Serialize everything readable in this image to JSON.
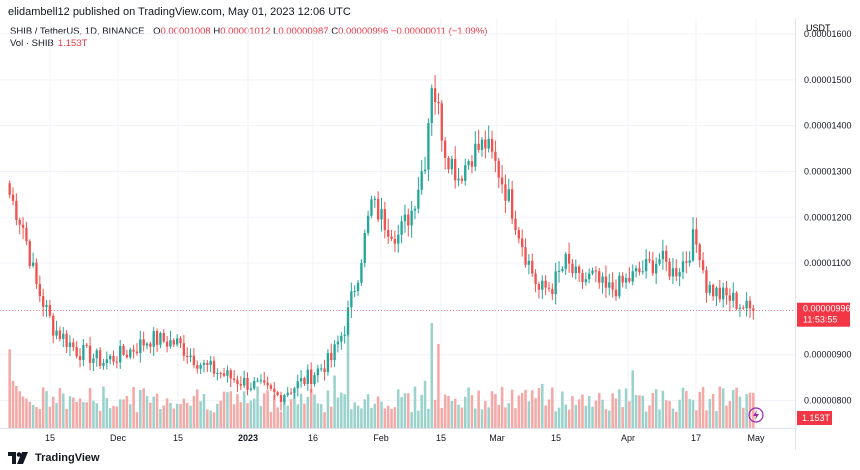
{
  "header": {
    "published": "elidambell12 published on TradingView.com, May 01, 2023 12:06 UTC"
  },
  "legend": {
    "symbol": "SHIB / TetherUS, 1D, BINANCE",
    "o_label": "O",
    "o": "0.00001008",
    "h_label": "H",
    "h": "0.00001012",
    "l_label": "L",
    "l": "0.00000987",
    "c_label": "C",
    "c": "0.00000996",
    "change": "−0.00000011 (−1.09%)",
    "vol_label": "Vol · SHIB",
    "vol": "1.153T"
  },
  "axis": {
    "currency": "USDT",
    "last_price": "0.00000996",
    "countdown": "11:53:55",
    "vol_badge": "1.153T"
  },
  "footer": {
    "brand": "TradingView"
  },
  "colors": {
    "up": "#26a69a",
    "down": "#ef5350",
    "up_vol": "#9bd3cc",
    "down_vol": "#f4a9a7",
    "last": "#f23645"
  },
  "chart_data": {
    "type": "candlestick",
    "y_ticks": [
      "0.00001600",
      "0.00001500",
      "0.00001400",
      "0.00001300",
      "0.00001200",
      "0.00001100",
      "0.00000996",
      "0.00000900",
      "0.00000800"
    ],
    "y_tick_values": [
      1.6e-05,
      1.5e-05,
      1.4e-05,
      1.3e-05,
      1.2e-05,
      1.1e-05,
      9.96e-06,
      9e-06,
      8e-06
    ],
    "x_ticks": [
      "15",
      "Dec",
      "15",
      "2023",
      "16",
      "Feb",
      "15",
      "Mar",
      "15",
      "Apr",
      "17",
      "May"
    ],
    "ylim": [
      7.4e-06,
      1.635e-05
    ],
    "price_anchors": [
      [
        0,
        1.25e-05
      ],
      [
        4,
        1.18e-05
      ],
      [
        8,
        1.05e-05
      ],
      [
        13,
        9.6e-06
      ],
      [
        20,
        9.1e-06
      ],
      [
        28,
        8.85e-06
      ],
      [
        35,
        9.05e-06
      ],
      [
        42,
        9.35e-06
      ],
      [
        50,
        9.25e-06
      ],
      [
        58,
        8.75e-06
      ],
      [
        66,
        8.5e-06
      ],
      [
        74,
        8.3e-06
      ],
      [
        80,
        8.1e-06
      ],
      [
        86,
        8.35e-06
      ],
      [
        90,
        8.55e-06
      ],
      [
        96,
        8.9e-06
      ],
      [
        100,
        9.6e-06
      ],
      [
        104,
        1.08e-05
      ],
      [
        108,
        1.23e-05
      ],
      [
        112,
        1.19e-05
      ],
      [
        116,
        1.16e-05
      ],
      [
        120,
        1.215e-05
      ],
      [
        124,
        1.33e-05
      ],
      [
        126,
        1.5e-05
      ],
      [
        128,
        1.43e-05
      ],
      [
        130,
        1.35e-05
      ],
      [
        134,
        1.29e-05
      ],
      [
        138,
        1.34e-05
      ],
      [
        142,
        1.36e-05
      ],
      [
        146,
        1.3e-05
      ],
      [
        150,
        1.22e-05
      ],
      [
        154,
        1.12e-05
      ],
      [
        158,
        1.04e-05
      ],
      [
        162,
        1.05e-05
      ],
      [
        166,
        1.1e-05
      ],
      [
        170,
        1.06e-05
      ],
      [
        174,
        1.07e-05
      ],
      [
        178,
        1.04e-05
      ],
      [
        182,
        1.05e-05
      ],
      [
        186,
        1.07e-05
      ],
      [
        190,
        1.09e-05
      ],
      [
        194,
        1.11e-05
      ],
      [
        198,
        1.08e-05
      ],
      [
        202,
        1.11e-05
      ],
      [
        204,
        1.15e-05
      ],
      [
        206,
        1.13e-05
      ],
      [
        208,
        1.05e-05
      ],
      [
        212,
        1.03e-05
      ],
      [
        216,
        1.02e-05
      ],
      [
        220,
        1e-05
      ],
      [
        222,
        9.96e-06
      ]
    ],
    "volume_pattern": [
      0.55,
      0.45,
      0.4,
      0.35,
      0.3,
      0.28,
      0.25,
      0.22,
      0.2,
      0.18
    ],
    "volume_spikes": [
      [
        0,
        0.75
      ],
      [
        101,
        1.0
      ],
      [
        126,
        1.0
      ],
      [
        128,
        0.8
      ],
      [
        97,
        0.5
      ],
      [
        124,
        0.45
      ],
      [
        159,
        0.42
      ],
      [
        186,
        0.55
      ],
      [
        218,
        0.3
      ]
    ]
  }
}
